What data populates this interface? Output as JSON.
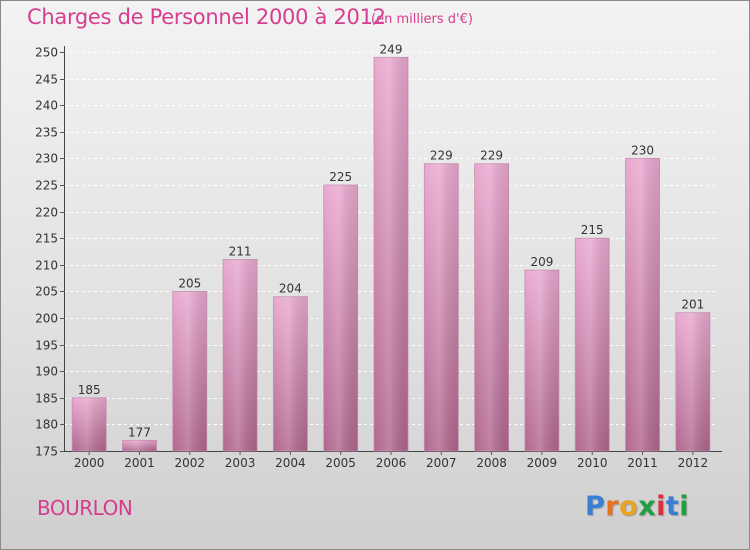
{
  "title": "Charges de Personnel 2000 à 2012",
  "subtitle": "(en milliers d'€)",
  "town": "BOURLON",
  "logo": {
    "letters": [
      "P",
      "r",
      "o",
      "x",
      "i",
      "t",
      "i"
    ],
    "colors": [
      "#3b7fd4",
      "#e8731e",
      "#e8a41e",
      "#1f9f3f",
      "#d8323c",
      "#3b7fd4",
      "#1f9f3f"
    ]
  },
  "colors": {
    "bar_top": "#e9a9d0",
    "bar_bottom": "#b0668e",
    "accent": "#d63d8f"
  },
  "chart_data": {
    "type": "bar",
    "categories": [
      "2000",
      "2001",
      "2002",
      "2003",
      "2004",
      "2005",
      "2006",
      "2007",
      "2008",
      "2009",
      "2010",
      "2011",
      "2012"
    ],
    "values": [
      185,
      177,
      205,
      211,
      204,
      225,
      249,
      229,
      229,
      209,
      215,
      230,
      201
    ],
    "data_labels": [
      "185",
      "177",
      "205",
      "211",
      "204",
      "225",
      "249",
      "229",
      "229",
      "209",
      "215",
      "230",
      "201"
    ],
    "ylim": [
      175,
      250
    ],
    "yticks": [
      175,
      180,
      185,
      190,
      195,
      200,
      205,
      210,
      215,
      220,
      225,
      230,
      235,
      240,
      245,
      250
    ],
    "ytick_labels": [
      "175",
      "180",
      "185",
      "190",
      "195",
      "200",
      "205",
      "210",
      "215",
      "220",
      "225",
      "230",
      "235",
      "240",
      "245",
      "250"
    ],
    "grid": true,
    "xlabel": "",
    "ylabel": ""
  }
}
